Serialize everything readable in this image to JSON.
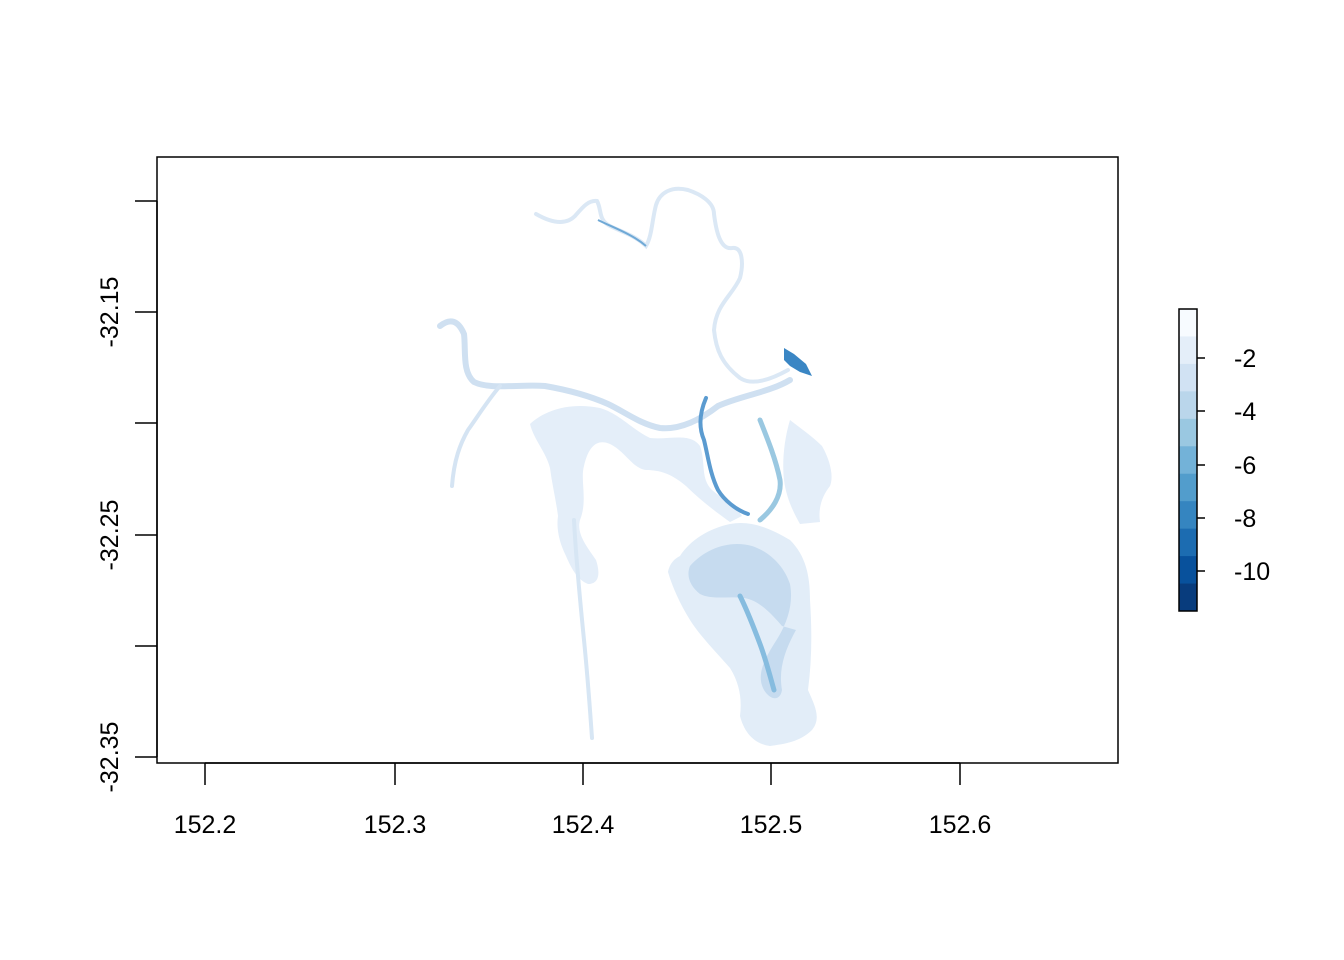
{
  "map": {
    "type": "raster",
    "x_ticks": [
      "152.2",
      "152.3",
      "152.4",
      "152.5",
      "152.6"
    ],
    "y_ticks": [
      "-32.15",
      "-32.25",
      "-32.35"
    ],
    "xlim": [
      152.175,
      152.68
    ],
    "ylim": [
      -32.355,
      -32.085
    ],
    "legend": {
      "placement": "right",
      "labels": [
        "-2",
        "-4",
        "-6",
        "-8",
        "-10"
      ],
      "colors": [
        "#f7fbff",
        "#e4eef9",
        "#d1e2f3",
        "#bad6eb",
        "#9ac8e1",
        "#73b2d8",
        "#529dcc",
        "#3585c0",
        "#1c6cb1",
        "#08519c",
        "#083c7d"
      ]
    }
  }
}
